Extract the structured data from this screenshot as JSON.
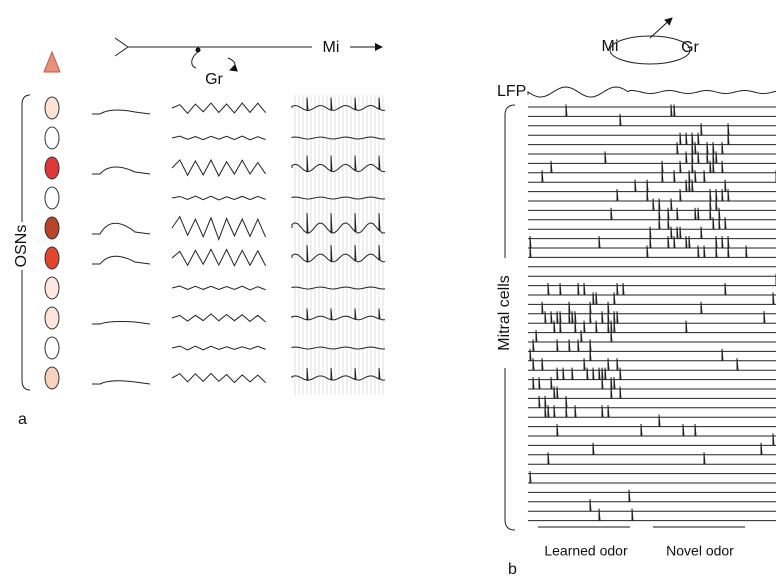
{
  "panel_a": {
    "circuit": {
      "mitral": "Mi",
      "granule": "Gr"
    },
    "axis_label": "OSNs",
    "panel_label": "a"
  },
  "panel_b": {
    "circuit": {
      "mitral": "Mi",
      "granule": "Gr"
    },
    "lfp_label": "LFP",
    "axis_label": "Mitral cells",
    "odor_labels": [
      "Learned odor",
      "Novel odor"
    ],
    "panel_label": "b"
  }
}
